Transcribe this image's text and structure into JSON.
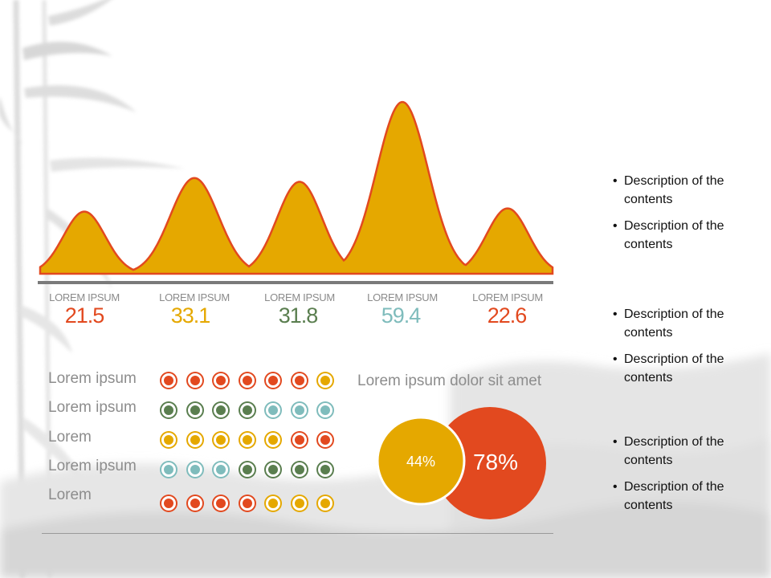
{
  "colors": {
    "gold": "#E5A800",
    "red_orange": "#E2491F",
    "green": "#5A7E4F",
    "teal": "#7FBCBC",
    "axis": "#7a7a7a"
  },
  "chart_data": [
    {
      "type": "area",
      "categories": [
        "LOREM IPSUM",
        "LOREM IPSUM",
        "LOREM IPSUM",
        "LOREM IPSUM",
        "LOREM IPSUM"
      ],
      "values": [
        21.5,
        33.1,
        31.8,
        59.4,
        22.6
      ],
      "value_colors": [
        "#E2491F",
        "#E5A800",
        "#5A7E4F",
        "#7FBCBC",
        "#E2491F"
      ],
      "title": "",
      "xlabel": "",
      "ylabel": ""
    },
    {
      "type": "table",
      "rows": [
        {
          "label": "Lorem ipsum",
          "dots": [
            "red_orange",
            "red_orange",
            "red_orange",
            "red_orange",
            "red_orange",
            "red_orange",
            "gold"
          ]
        },
        {
          "label": "Lorem ipsum",
          "dots": [
            "green",
            "green",
            "green",
            "green",
            "teal",
            "teal",
            "teal"
          ]
        },
        {
          "label": "Lorem",
          "dots": [
            "gold",
            "gold",
            "gold",
            "gold",
            "gold",
            "red_orange",
            "red_orange"
          ]
        },
        {
          "label": "Lorem ipsum",
          "dots": [
            "teal",
            "teal",
            "teal",
            "green",
            "green",
            "green",
            "green"
          ]
        },
        {
          "label": "Lorem",
          "dots": [
            "red_orange",
            "red_orange",
            "red_orange",
            "red_orange",
            "gold",
            "gold",
            "gold"
          ]
        }
      ]
    },
    {
      "type": "pie",
      "title": "Lorem ipsum dolor sit amet",
      "slices": [
        {
          "label": "44%",
          "value": 44,
          "color": "#E5A800"
        },
        {
          "label": "78%",
          "value": 78,
          "color": "#E2491F"
        }
      ]
    }
  ],
  "bullets": [
    [
      "Description of the contents",
      "Description of the contents"
    ],
    [
      "Description of the contents",
      "Description of the contents"
    ],
    [
      "Description of the contents",
      "Description of the contents"
    ]
  ]
}
